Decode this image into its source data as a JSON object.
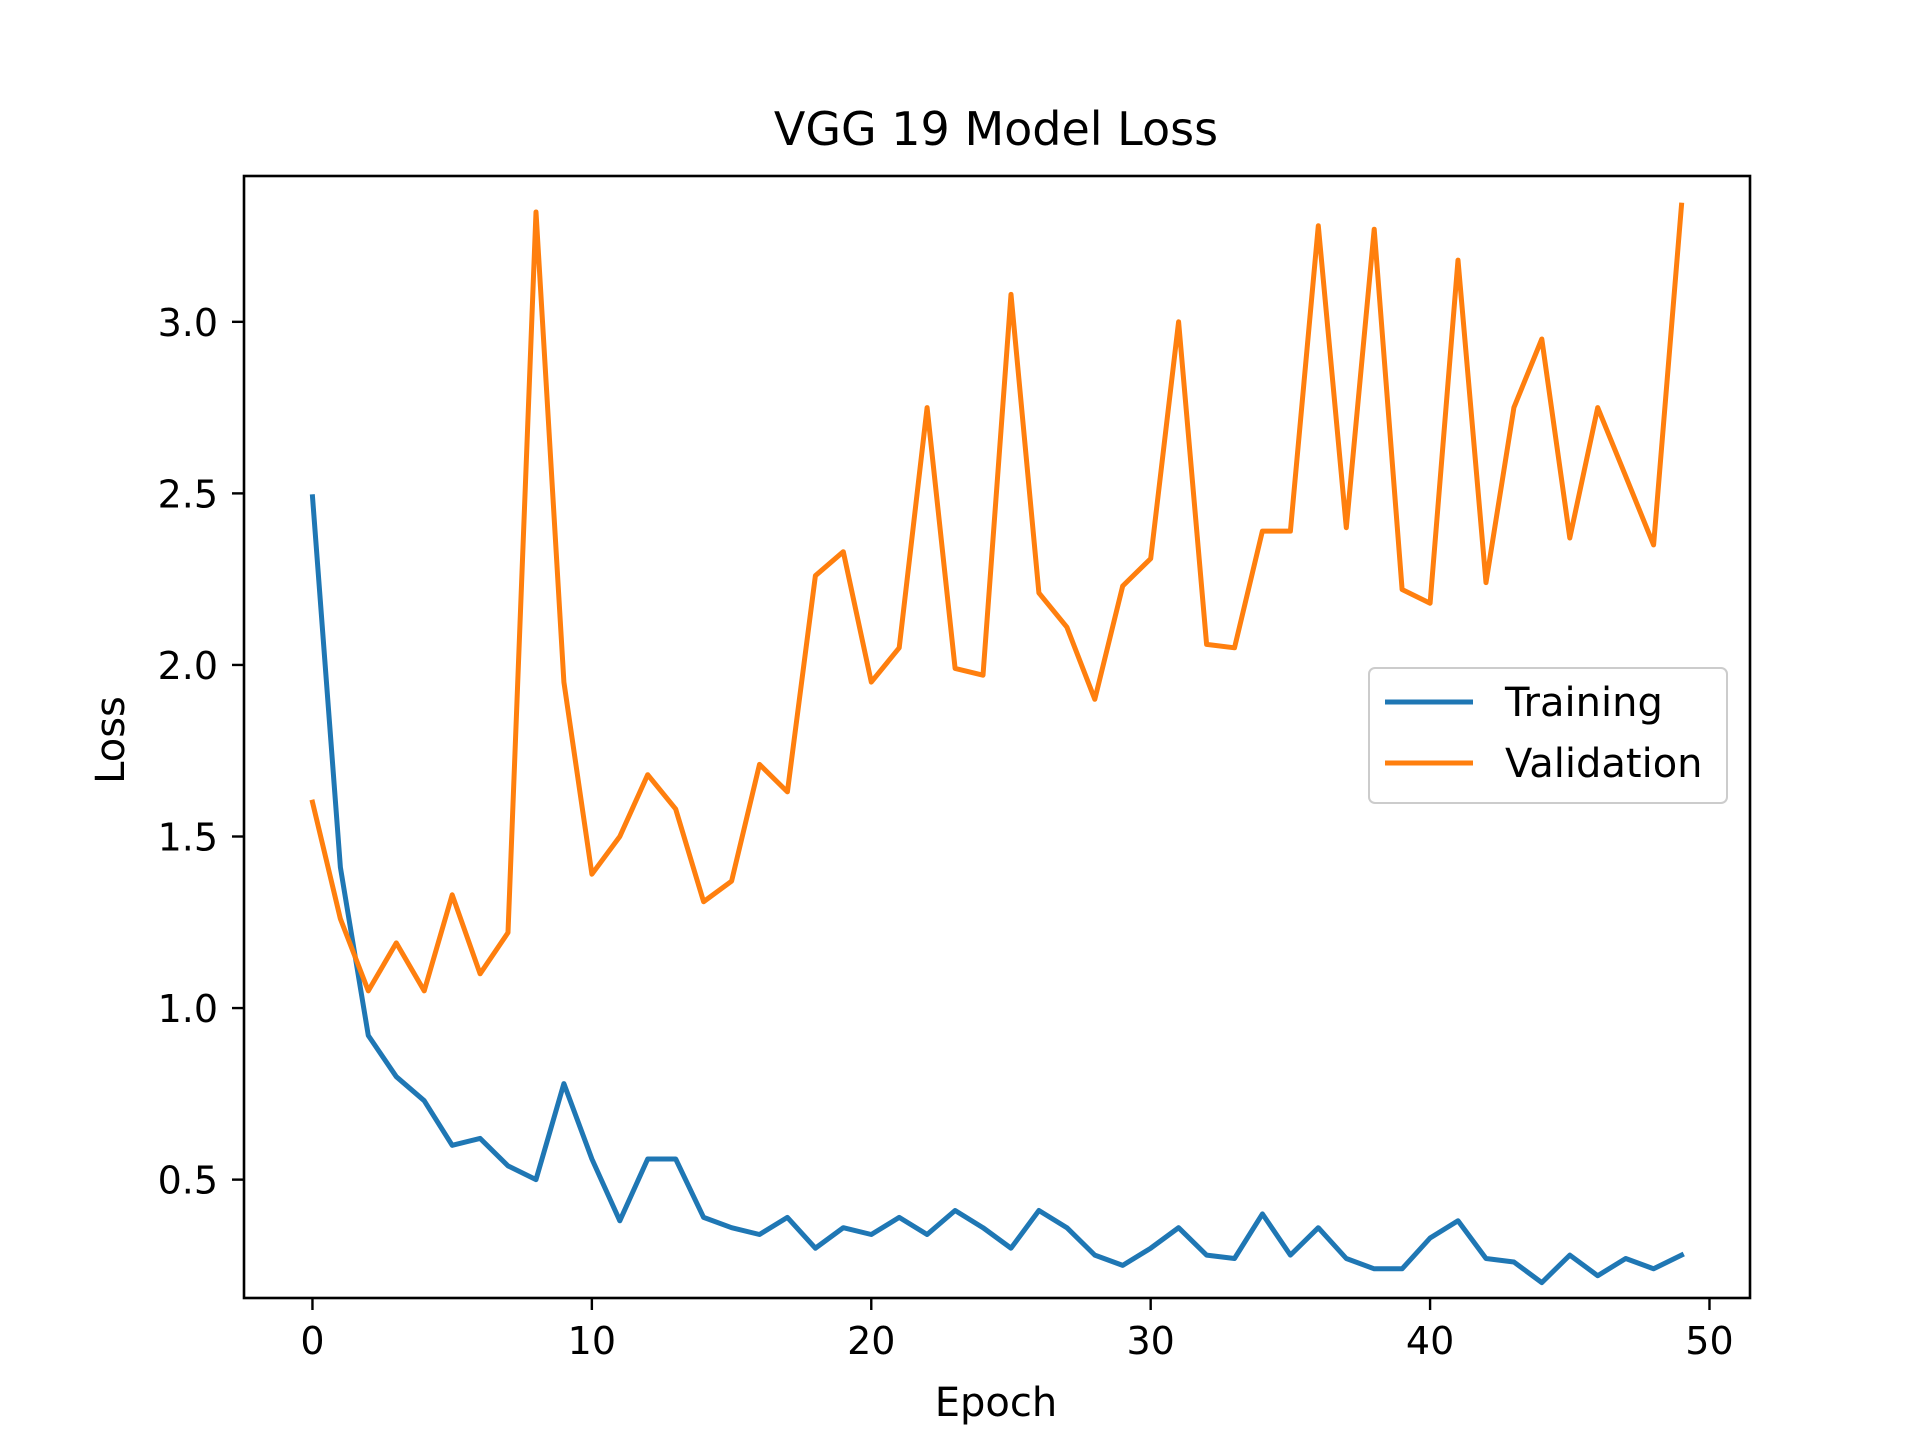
{
  "chart_data": {
    "type": "line",
    "title": "VGG 19 Model Loss",
    "xlabel": "Epoch",
    "ylabel": "Loss",
    "xlim": [
      -2.45,
      51.45
    ],
    "ylim": [
      0.155,
      3.425
    ],
    "xticks": [
      0,
      10,
      20,
      30,
      40,
      50
    ],
    "xtick_labels": [
      "0",
      "10",
      "20",
      "30",
      "40",
      "50"
    ],
    "yticks": [
      0.5,
      1.0,
      1.5,
      2.0,
      2.5,
      3.0
    ],
    "ytick_labels": [
      "0.5",
      "1.0",
      "1.5",
      "2.0",
      "2.5",
      "3.0"
    ],
    "grid": false,
    "legend_position": "center-right",
    "x": [
      0,
      1,
      2,
      3,
      4,
      5,
      6,
      7,
      8,
      9,
      10,
      11,
      12,
      13,
      14,
      15,
      16,
      17,
      18,
      19,
      20,
      21,
      22,
      23,
      24,
      25,
      26,
      27,
      28,
      29,
      30,
      31,
      32,
      33,
      34,
      35,
      36,
      37,
      38,
      39,
      40,
      41,
      42,
      43,
      44,
      45,
      46,
      47,
      48,
      49
    ],
    "series": [
      {
        "name": "Training",
        "color": "#1f77b4",
        "values": [
          2.49,
          1.41,
          0.92,
          0.8,
          0.73,
          0.6,
          0.62,
          0.54,
          0.5,
          0.78,
          0.56,
          0.38,
          0.56,
          0.56,
          0.39,
          0.36,
          0.34,
          0.39,
          0.3,
          0.36,
          0.34,
          0.39,
          0.34,
          0.41,
          0.36,
          0.3,
          0.41,
          0.36,
          0.28,
          0.25,
          0.3,
          0.36,
          0.28,
          0.27,
          0.4,
          0.28,
          0.36,
          0.27,
          0.24,
          0.24,
          0.33,
          0.38,
          0.27,
          0.26,
          0.2,
          0.28,
          0.22,
          0.27,
          0.24,
          0.28
        ]
      },
      {
        "name": "Validation",
        "color": "#ff7f0e",
        "values": [
          1.6,
          1.26,
          1.05,
          1.19,
          1.05,
          1.33,
          1.1,
          1.22,
          3.32,
          1.95,
          1.39,
          1.5,
          1.68,
          1.58,
          1.31,
          1.37,
          1.71,
          1.63,
          2.26,
          2.33,
          1.95,
          2.05,
          2.75,
          1.99,
          1.97,
          3.08,
          2.21,
          2.11,
          1.9,
          2.23,
          2.31,
          3.0,
          2.06,
          2.05,
          2.39,
          2.39,
          3.28,
          2.4,
          3.27,
          2.22,
          2.18,
          3.18,
          2.24,
          2.75,
          2.95,
          2.37,
          2.75,
          2.55,
          2.35,
          3.34
        ]
      }
    ]
  }
}
